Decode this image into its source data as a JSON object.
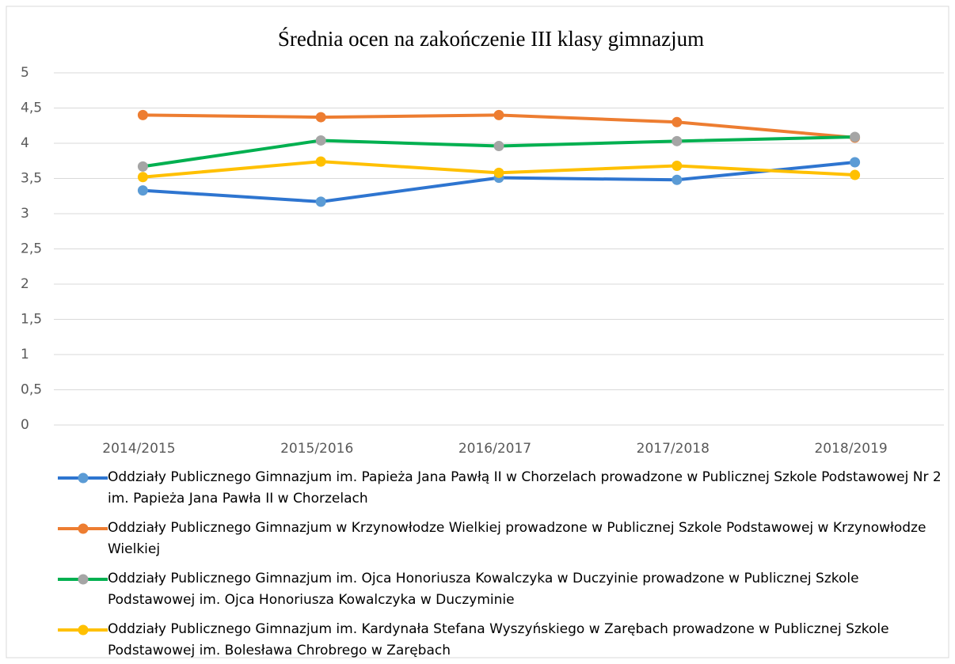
{
  "chart_data": {
    "type": "line",
    "title": "Średnia ocen na zakończenie III klasy gimnazjum",
    "categories": [
      "2014/2015",
      "2015/2016",
      "2016/2017",
      "2017/2018",
      "2018/2019"
    ],
    "series": [
      {
        "name": "Oddziały Publicznego Gimnazjum im. Papieża Jana Pawłą II w Chorzelach prowadzone w Publicznej Szkole Podstawowej Nr 2 im. Papieża Jana Pawła II w Chorzelach",
        "color": "#2e75d0",
        "marker_color": "#5b9bd5",
        "values": [
          3.33,
          3.17,
          3.51,
          3.48,
          3.73
        ]
      },
      {
        "name": "Oddziały Publicznego Gimnazjum w Krzynowłodze Wielkiej prowadzone w Publicznej Szkole Podstawowej w Krzynowłodze Wielkiej",
        "color": "#ed7d31",
        "marker_color": "#ed7d31",
        "values": [
          4.4,
          4.37,
          4.4,
          4.3,
          4.08
        ]
      },
      {
        "name": "Oddziały Publicznego Gimnazjum im. Ojca Honoriusza Kowalczyka w Duczyinie prowadzone w Publicznej Szkole Podstawowej im. Ojca Honoriusza Kowalczyka w Duczyminie",
        "color": "#00b050",
        "marker_color": "#a5a5a5",
        "values": [
          3.67,
          4.04,
          3.96,
          4.03,
          4.09
        ]
      },
      {
        "name": "Oddziały Publicznego Gimnazjum im. Kardynała Stefana Wyszyńskiego w Zarębach prowadzone w Publicznej Szkole Podstawowej im. Bolesława Chrobrego w Zarębach",
        "color": "#ffc000",
        "marker_color": "#ffc000",
        "values": [
          3.52,
          3.74,
          3.58,
          3.68,
          3.55
        ]
      }
    ],
    "ylim": [
      0,
      5
    ],
    "yticks": [
      0,
      {
        "value": 0.5,
        "label": "0,5"
      },
      1,
      {
        "value": 1.5,
        "label": "1,5"
      },
      2,
      {
        "value": 2.5,
        "label": "2,5"
      },
      3,
      {
        "value": 3.5,
        "label": "3,5"
      },
      4,
      {
        "value": 4.5,
        "label": "4,5"
      },
      5
    ],
    "grid": true,
    "legend": "bottom"
  }
}
